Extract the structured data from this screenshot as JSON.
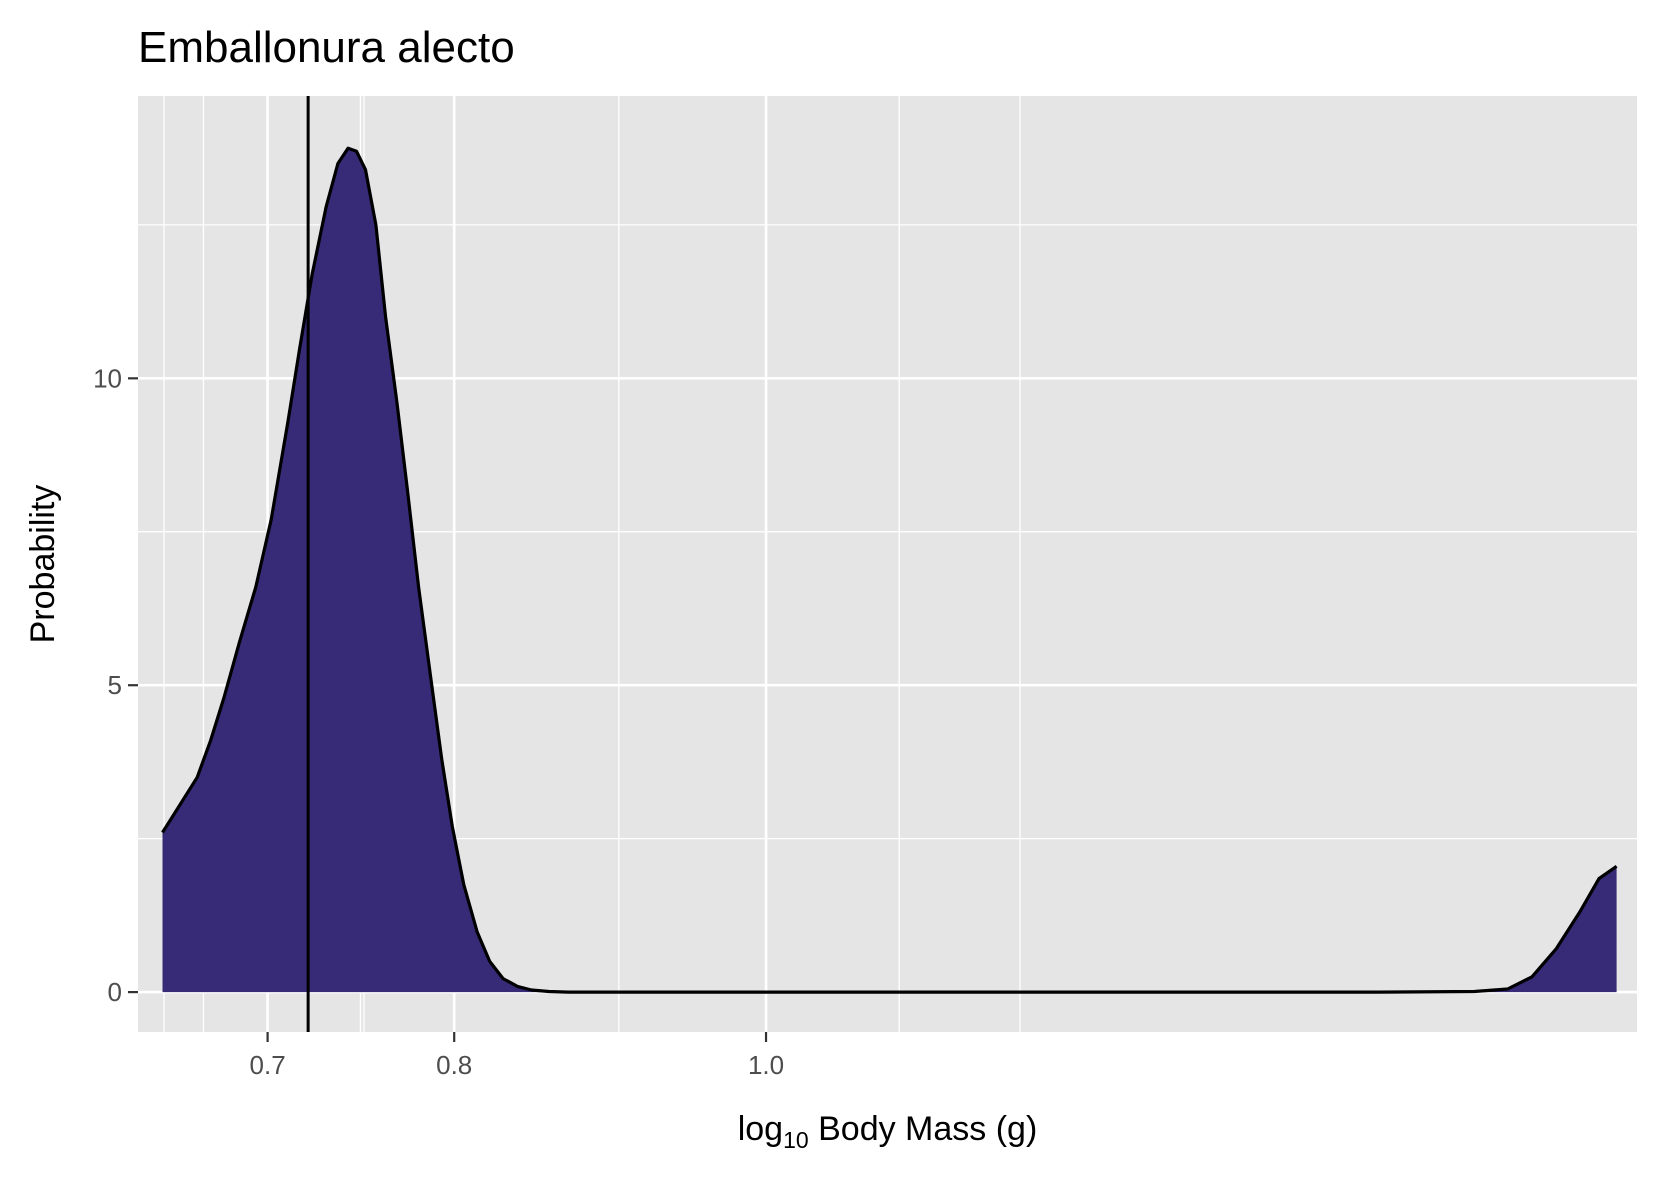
{
  "chart_data": {
    "type": "area",
    "title": "Emballonura alecto",
    "xlabel": {
      "base": "log",
      "subscript": "10",
      "rest": " Body Mass (g)"
    },
    "ylabel": "Probability",
    "x_scale": "log",
    "xlim": [
      0.638,
      1.865
    ],
    "ylim": [
      -0.65,
      14.6
    ],
    "x_ticks": [
      {
        "value": 0.7,
        "label": "0.7"
      },
      {
        "value": 0.8,
        "label": "0.8"
      },
      {
        "value": 1.0,
        "label": "1.0"
      }
    ],
    "x_minor_gridlines": [
      0.65,
      0.75,
      0.9,
      1.1
    ],
    "x_extra_gridlines": [
      0.6686,
      0.7481,
      1.1993
    ],
    "y_ticks": [
      {
        "value": 0,
        "label": "0"
      },
      {
        "value": 5,
        "label": "5"
      },
      {
        "value": 10,
        "label": "10"
      }
    ],
    "y_minor_gridlines": [
      2.5,
      7.5,
      12.5
    ],
    "grid": true,
    "vline": {
      "x": 0.7206
    },
    "fill_color": "#372b77",
    "line_color": "#000000",
    "panel_color": "#e5e5e5",
    "grid_color": "#ffffff",
    "series": [
      {
        "x": [
          0.6493,
          0.6574,
          0.6656,
          0.672,
          0.6785,
          0.686,
          0.6941,
          0.7018,
          0.7103,
          0.7163,
          0.7227,
          0.73,
          0.7361,
          0.7415,
          0.746,
          0.7508,
          0.7564,
          0.7617,
          0.7679,
          0.7736,
          0.7799,
          0.7863,
          0.7929,
          0.7989,
          0.8055,
          0.8133,
          0.8206,
          0.8285,
          0.8373,
          0.8455,
          0.8561,
          0.868,
          0.8839,
          0.9016,
          1.0,
          1.2,
          1.55,
          1.66,
          1.7,
          1.73,
          1.76,
          1.79,
          1.815,
          1.838
        ],
        "y": [
          2.6,
          3.05,
          3.5,
          4.1,
          4.8,
          5.7,
          6.6,
          7.7,
          9.3,
          10.5,
          11.7,
          12.8,
          13.5,
          13.75,
          13.7,
          13.4,
          12.5,
          11.0,
          9.6,
          8.2,
          6.6,
          5.2,
          3.8,
          2.7,
          1.75,
          0.98,
          0.5,
          0.22,
          0.09,
          0.035,
          0.01,
          0.0,
          0.0,
          0.0,
          0.0,
          0.0,
          0.0,
          0.01,
          0.05,
          0.25,
          0.7,
          1.3,
          1.85,
          2.05
        ]
      }
    ]
  }
}
